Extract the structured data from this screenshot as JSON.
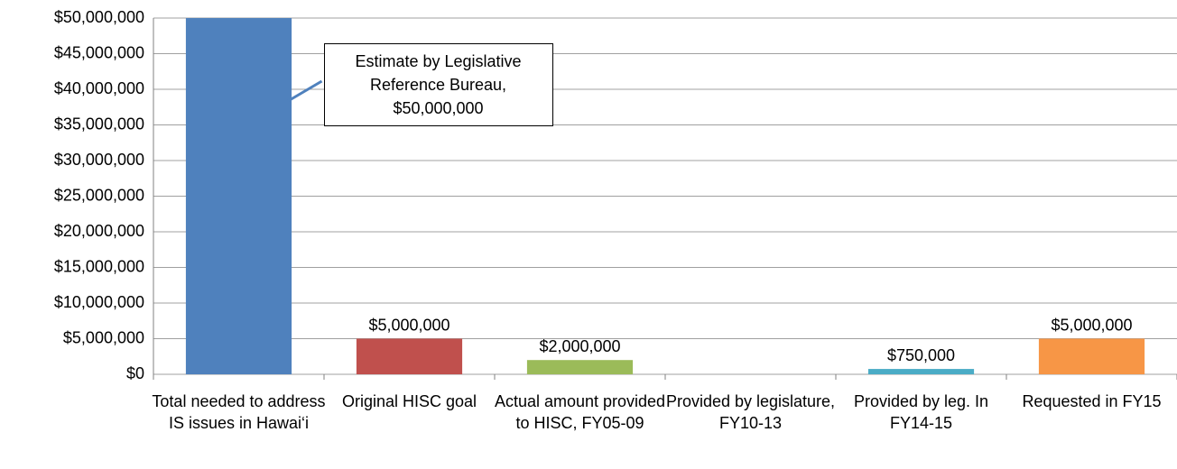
{
  "chart_data": {
    "type": "bar",
    "categories": [
      "Total needed to address IS issues in Hawai‘i",
      "Original HISC goal",
      "Actual amount provided to HISC, FY05-09",
      "Provided by legislature, FY10-13",
      "Provided by leg. In FY14-15",
      "Requested in FY15"
    ],
    "values": [
      50000000,
      5000000,
      2000000,
      0,
      750000,
      5000000
    ],
    "value_labels": [
      "Estimate by Legislative Reference Bureau, $50,000,000",
      "$5,000,000",
      "$2,000,000",
      null,
      "$750,000",
      "$5,000,000"
    ],
    "colors": [
      "#4f81bd",
      "#c0504d",
      "#9bbb59",
      "#8064a2",
      "#4bacc6",
      "#f79646"
    ],
    "ylim": [
      0,
      50000000
    ],
    "yticks": [
      {
        "value": 0,
        "label": "$0"
      },
      {
        "value": 5000000,
        "label": "$5,000,000"
      },
      {
        "value": 10000000,
        "label": "$10,000,000"
      },
      {
        "value": 15000000,
        "label": "$15,000,000"
      },
      {
        "value": 20000000,
        "label": "$20,000,000"
      },
      {
        "value": 25000000,
        "label": "$25,000,000"
      },
      {
        "value": 30000000,
        "label": "$30,000,000"
      },
      {
        "value": 35000000,
        "label": "$35,000,000"
      },
      {
        "value": 40000000,
        "label": "$40,000,000"
      },
      {
        "value": 45000000,
        "label": "$45,000,000"
      },
      {
        "value": 50000000,
        "label": "$50,000,000"
      }
    ],
    "grid": true
  }
}
